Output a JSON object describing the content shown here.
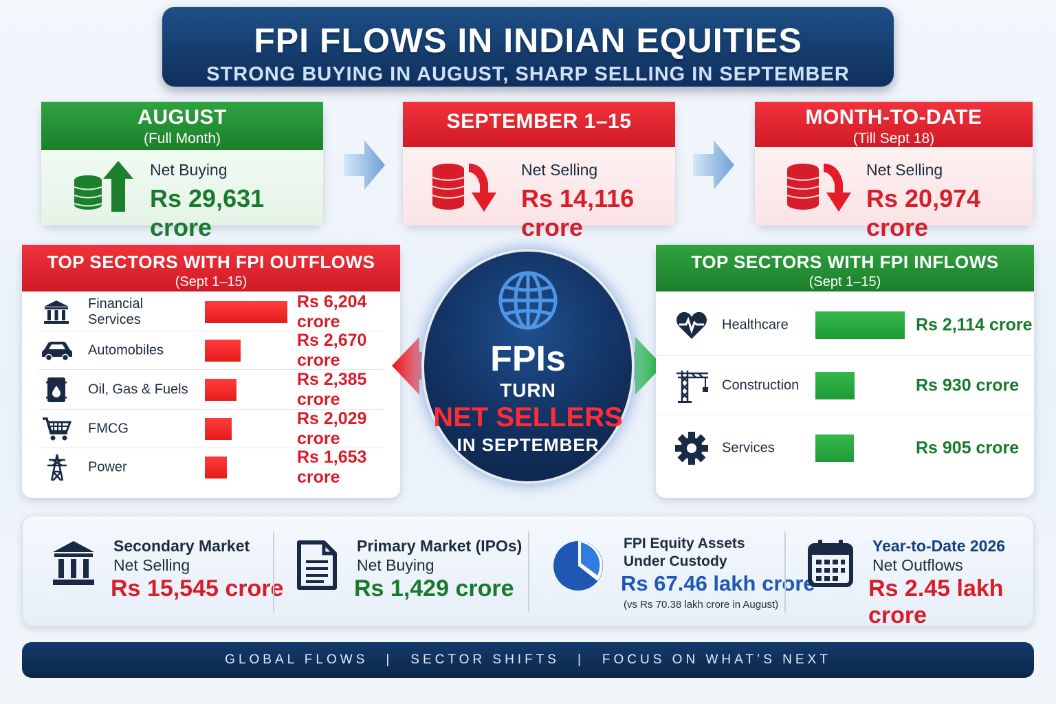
{
  "header": {
    "title": "FPI FLOWS IN INDIAN EQUITIES",
    "subtitle": "STRONG BUYING IN AUGUST, SHARP SELLING IN SEPTEMBER"
  },
  "cards": [
    {
      "title": "AUGUST",
      "subtitle": "(Full Month)",
      "label": "Net Buying",
      "amount": "Rs 29,631 crore",
      "color": "#1b7f2b"
    },
    {
      "title": "SEPTEMBER 1–15",
      "subtitle": "",
      "label": "Net Selling",
      "amount": "Rs 14,116 crore",
      "color": "#d01a25"
    },
    {
      "title": "MONTH-TO-DATE",
      "subtitle": "(Till Sept 18)",
      "label": "Net Selling",
      "amount": "Rs 20,974 crore",
      "color": "#d01a25"
    }
  ],
  "outflows": {
    "title": "TOP SECTORS WITH FPI OUTFLOWS",
    "subtitle": "(Sept 1–15)",
    "items": [
      {
        "icon": "bank-icon",
        "name": "Financial Services",
        "value": 6204,
        "label": "Rs 6,204 crore"
      },
      {
        "icon": "car-icon",
        "name": "Automobiles",
        "value": 2670,
        "label": "Rs 2,670 crore"
      },
      {
        "icon": "oil-barrel-icon",
        "name": "Oil, Gas & Fuels",
        "value": 2385,
        "label": "Rs 2,385 crore"
      },
      {
        "icon": "shopping-cart-icon",
        "name": "FMCG",
        "value": 2029,
        "label": "Rs 2,029 crore"
      },
      {
        "icon": "power-tower-icon",
        "name": "Power",
        "value": 1653,
        "label": "Rs 1,653 crore"
      }
    ]
  },
  "inflows": {
    "title": "TOP SECTORS WITH FPI INFLOWS",
    "subtitle": "(Sept 1–15)",
    "items": [
      {
        "icon": "heart-pulse-icon",
        "name": "Healthcare",
        "value": 2114,
        "label": "Rs 2,114 crore"
      },
      {
        "icon": "crane-icon",
        "name": "Construction",
        "value": 930,
        "label": "Rs 930 crore"
      },
      {
        "icon": "gear-icon",
        "name": "Services",
        "value": 905,
        "label": "Rs 905 crore"
      }
    ]
  },
  "center": {
    "line1": "FPIs",
    "line2": "TURN",
    "line3": "NET SELLERS",
    "line4": "IN SEPTEMBER"
  },
  "stats": [
    {
      "icon": "bank-icon",
      "title": "Secondary Market",
      "sub": "Net Selling",
      "amount": "Rs 15,545 crore",
      "note": "",
      "color": "#d71d29"
    },
    {
      "icon": "document-icon",
      "title": "Primary Market (IPOs)",
      "sub": "Net Buying",
      "amount": "Rs 1,429 crore",
      "note": "",
      "color": "#187a2c"
    },
    {
      "icon": "pie-chart-icon",
      "title": "FPI Equity Assets",
      "sub": "Under Custody",
      "amount": "Rs 67.46 lakh crore",
      "note": "(vs Rs 70.38 lakh crore in August)",
      "color": "#1f57b5"
    },
    {
      "icon": "calendar-icon",
      "title": "Year-to-Date 2026",
      "sub": "Net Outflows",
      "amount": "Rs 2.45 lakh crore",
      "note": "",
      "color": "#d71d29"
    }
  ],
  "footer": {
    "items": [
      "GLOBAL FLOWS",
      "SECTOR SHIFTS",
      "FOCUS ON WHAT’S NEXT"
    ],
    "separator": "|"
  },
  "colors": {
    "navy": "#0f2f5c",
    "green": "#1b7f2b",
    "red": "#d01a25",
    "blue": "#1f57b5"
  }
}
